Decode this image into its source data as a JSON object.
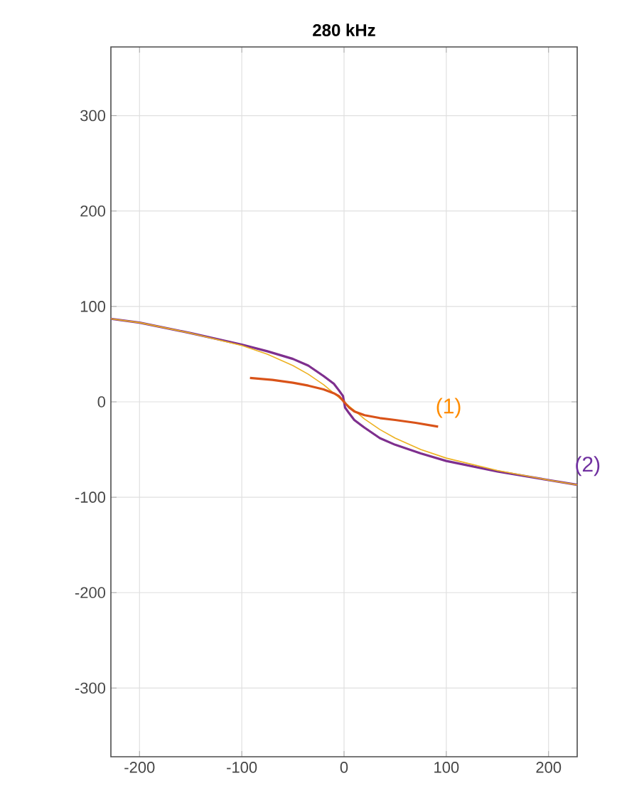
{
  "chart_data": {
    "type": "line",
    "title": "280 kHz",
    "xlim": [
      -228,
      228
    ],
    "ylim": [
      -372,
      372
    ],
    "xticks": [
      -200,
      -100,
      0,
      100,
      200
    ],
    "yticks": [
      -300,
      -200,
      -100,
      0,
      100,
      200,
      300
    ],
    "grid": true,
    "line_style": "solid",
    "marker": "none",
    "series": [
      {
        "color": "#7e2f8e",
        "x": [
          -228,
          -200,
          -150,
          -100,
          -75,
          -50,
          -35,
          -20,
          -10,
          -5,
          -1,
          0,
          1,
          5,
          10,
          20,
          35,
          50,
          75,
          100,
          150,
          200,
          228
        ],
        "values": [
          87,
          83,
          72,
          60,
          53,
          45,
          38,
          27,
          19,
          12,
          6,
          0,
          -6,
          -12,
          -19,
          -27,
          -38,
          -45,
          -54,
          -62,
          -73,
          -82,
          -87
        ]
      },
      {
        "color": "#edb120",
        "x": [
          -228,
          -200,
          -150,
          -100,
          -75,
          -50,
          -35,
          -20,
          -10,
          0,
          10,
          20,
          35,
          50,
          75,
          100,
          150,
          200,
          228
        ],
        "values": [
          87,
          83,
          72,
          59,
          50,
          38,
          29,
          18,
          9,
          0,
          -9,
          -18,
          -29,
          -38,
          -50,
          -59,
          -72,
          -82,
          -87
        ]
      },
      {
        "color": "#d95319",
        "x": [
          -92,
          -70,
          -50,
          -35,
          -20,
          -10,
          -5,
          0,
          5,
          10,
          20,
          35,
          50,
          70,
          92
        ],
        "values": [
          25,
          23,
          20,
          17,
          13,
          9,
          6,
          0,
          -6,
          -10,
          -14,
          -17,
          -19,
          -22,
          -26
        ]
      }
    ],
    "annotations": [
      {
        "text": "(1)",
        "x": 92,
        "y": -26
      },
      {
        "text": "(2)",
        "x": 228,
        "y": -87
      }
    ]
  }
}
